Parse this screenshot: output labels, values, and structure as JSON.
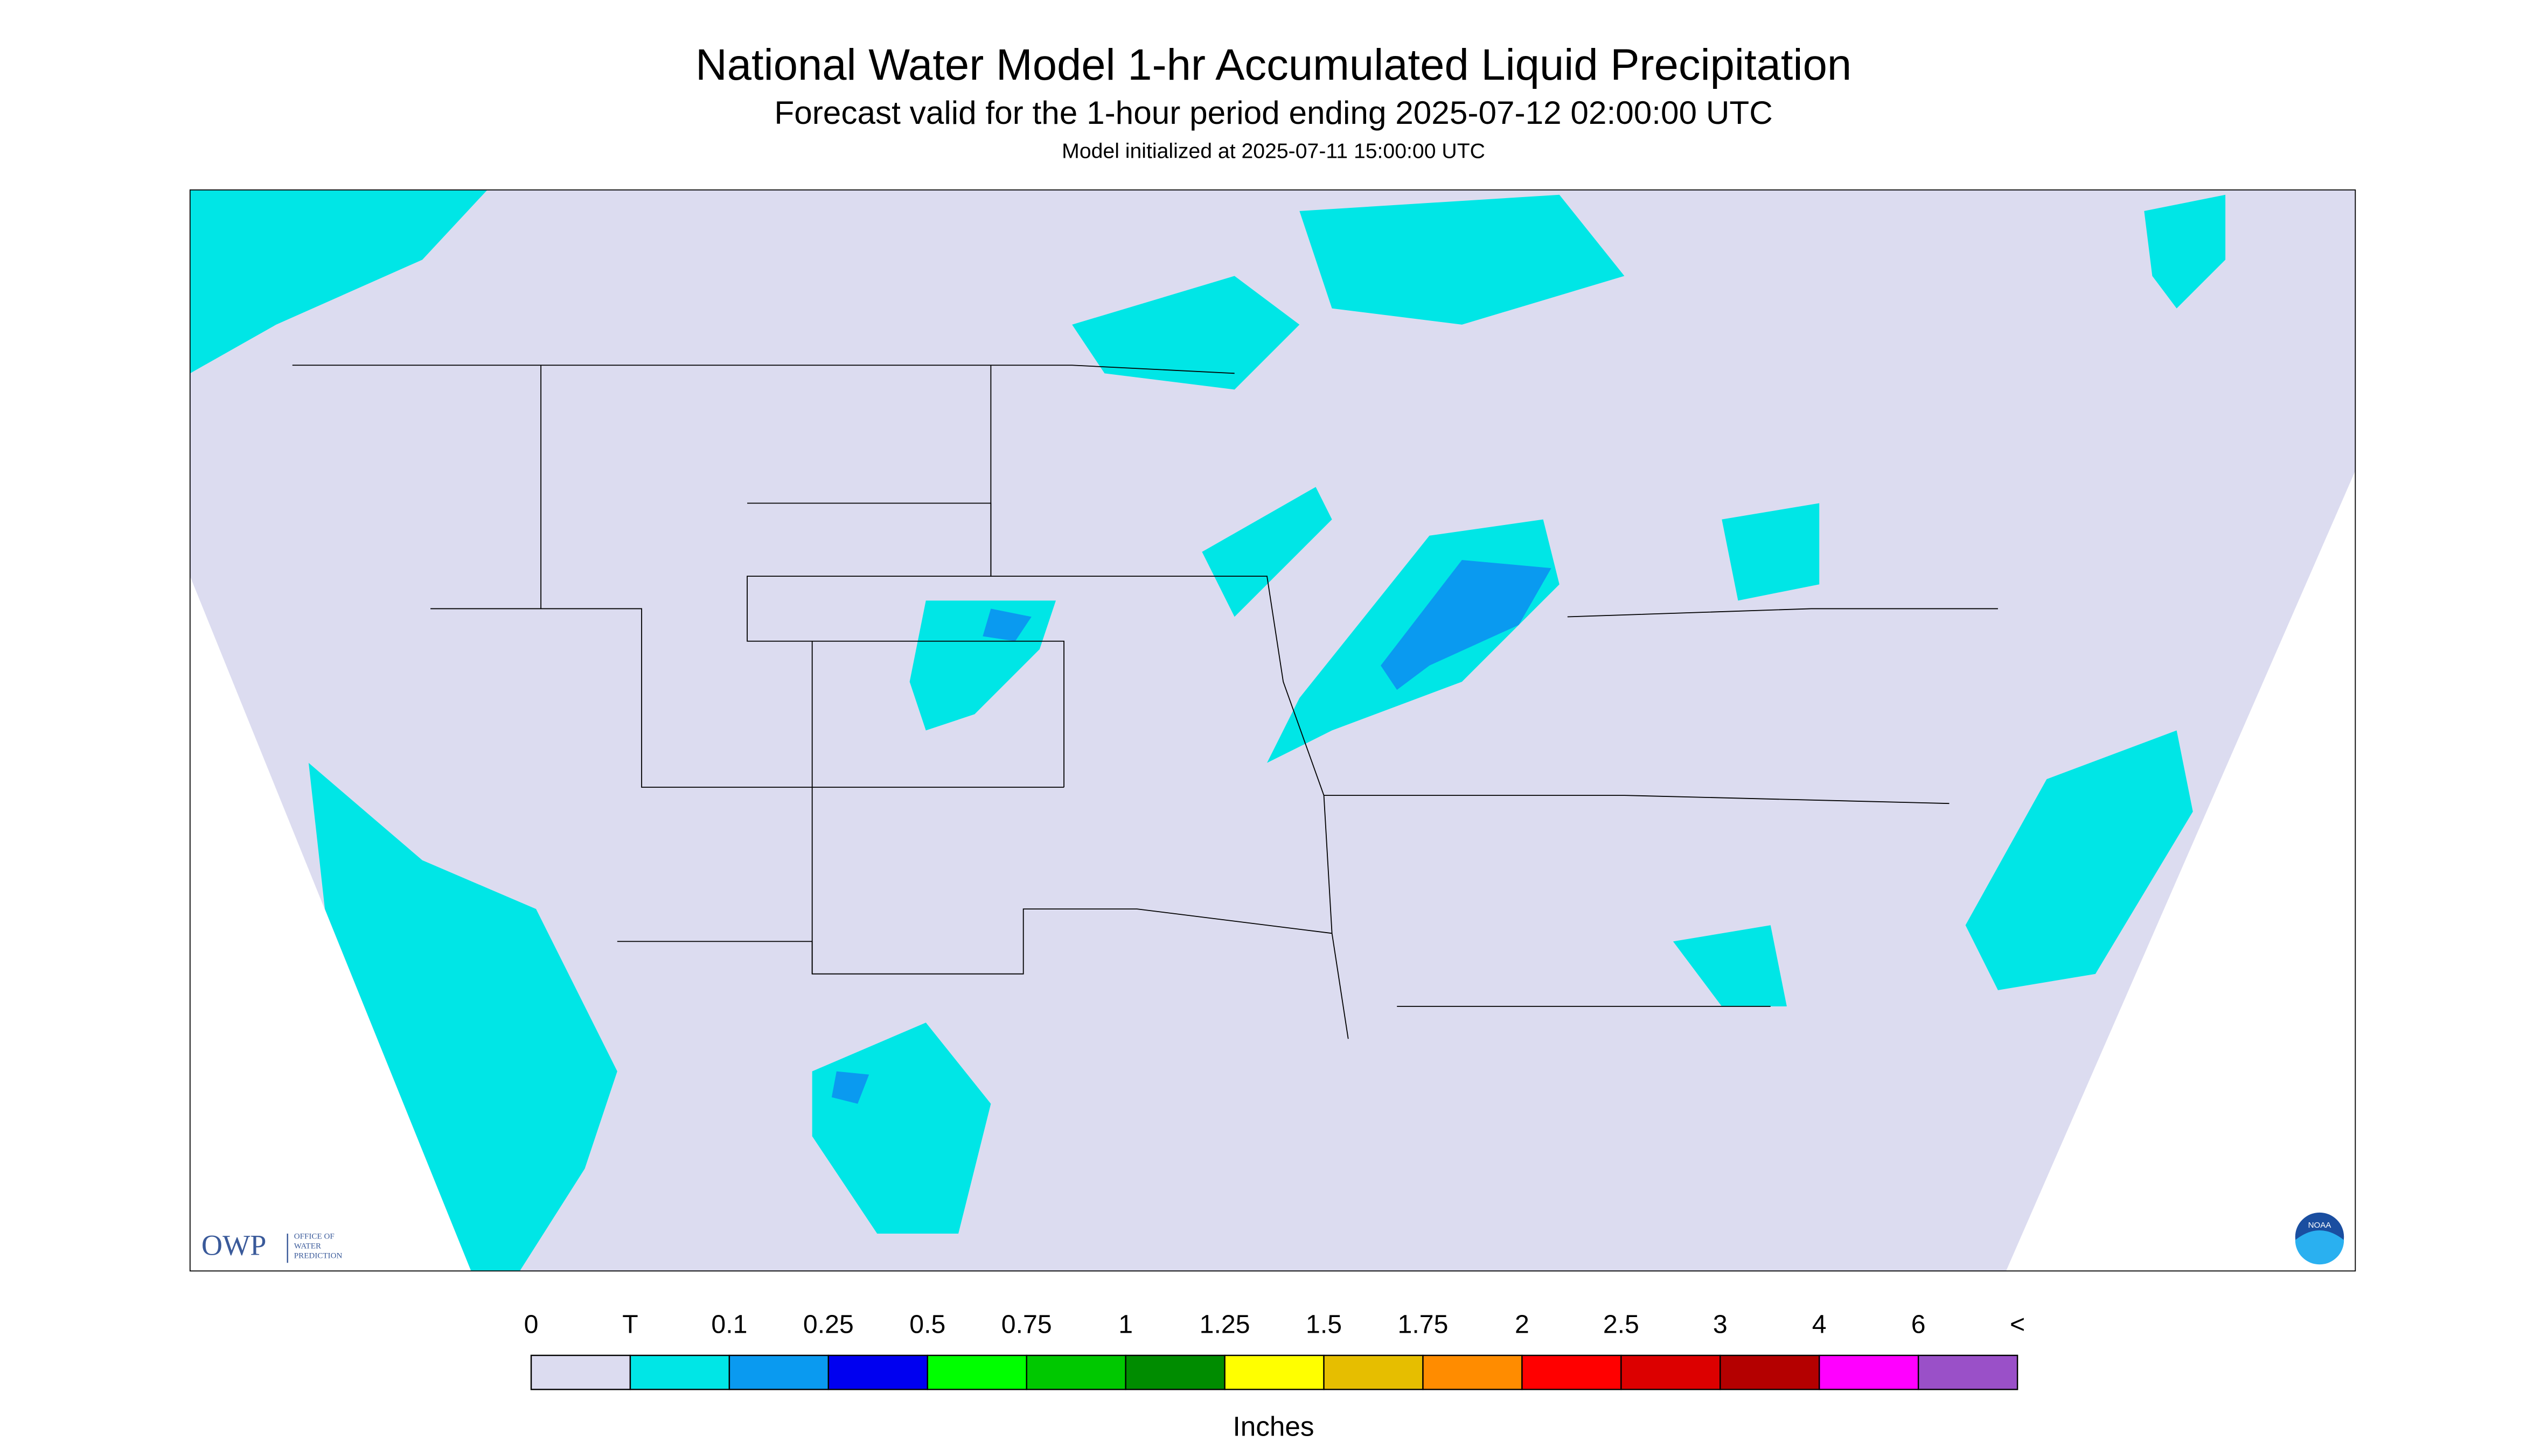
{
  "header": {
    "title": "National Water Model 1-hr Accumulated Liquid Precipitation",
    "subtitle": "Forecast valid for the 1-hour period ending 2025-07-12 02:00:00 UTC",
    "init": "Model initialized at 2025-07-11 15:00:00 UTC"
  },
  "logo": {
    "abbr": "OWP",
    "line1": "OFFICE OF",
    "line2": "WATER",
    "line3": "PREDICTION",
    "badge": "NOAA"
  },
  "legend": {
    "labels": [
      "0",
      "T",
      "0.1",
      "0.25",
      "0.5",
      "0.75",
      "1",
      "1.25",
      "1.5",
      "1.75",
      "2",
      "2.5",
      "3",
      "4",
      "6",
      "<"
    ],
    "colors": [
      "#dcdcf0",
      "#00e6e6",
      "#0a9af0",
      "#0000f0",
      "#00ff00",
      "#00c800",
      "#008c00",
      "#ffff00",
      "#e6be00",
      "#ff8c00",
      "#ff0000",
      "#dc0000",
      "#b40000",
      "#ff00ff",
      "#9a50c8"
    ],
    "unit": "Inches"
  }
}
